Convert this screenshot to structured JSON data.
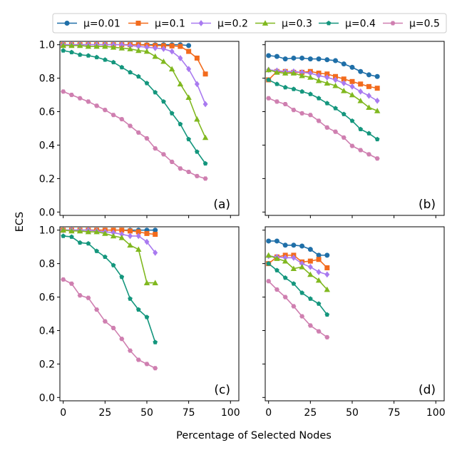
{
  "figure": {
    "ylabel": "ECS",
    "xlabel": "Percentage of Selected Nodes"
  },
  "legend": [
    {
      "name": "μ=0.01",
      "color": "#1f6fa8",
      "marker": "circle"
    },
    {
      "name": "μ=0.1",
      "color": "#f26b1d",
      "marker": "square"
    },
    {
      "name": "μ=0.2",
      "color": "#a97af0",
      "marker": "diamond"
    },
    {
      "name": "μ=0.3",
      "color": "#80b81f",
      "marker": "triangle"
    },
    {
      "name": "μ=0.4",
      "color": "#14967d",
      "marker": "pentagon"
    },
    {
      "name": "μ=0.5",
      "color": "#cf7fb0",
      "marker": "hexagon"
    }
  ],
  "chart_data": [
    {
      "type": "line",
      "panel": "(a)",
      "xlim": [
        -2,
        105
      ],
      "ylim": [
        -0.02,
        1.02
      ],
      "xticks": [
        "0",
        "25",
        "50",
        "75",
        "100"
      ],
      "yticks": [
        "0.0",
        "0.2",
        "0.4",
        "0.6",
        "0.8",
        "1.0"
      ],
      "series": [
        {
          "name": "μ=0.01",
          "x": [
            0,
            5,
            10,
            15,
            20,
            25,
            30,
            35,
            40,
            45,
            50,
            55,
            60,
            65,
            70,
            75
          ],
          "y": [
            1.0,
            1.0,
            1.0,
            1.0,
            1.0,
            1.0,
            1.0,
            1.0,
            1.0,
            1.0,
            1.0,
            1.0,
            1.0,
            1.0,
            1.0,
            0.995
          ]
        },
        {
          "name": "μ=0.1",
          "x": [
            0,
            5,
            10,
            15,
            20,
            25,
            30,
            35,
            40,
            45,
            50,
            55,
            60,
            65,
            70,
            75,
            80,
            85
          ],
          "y": [
            1.0,
            1.0,
            1.0,
            1.0,
            1.0,
            1.0,
            1.0,
            1.0,
            1.0,
            1.0,
            0.997,
            0.995,
            0.994,
            0.993,
            0.99,
            0.96,
            0.92,
            0.825
          ]
        },
        {
          "name": "μ=0.2",
          "x": [
            0,
            5,
            10,
            15,
            20,
            25,
            30,
            35,
            40,
            45,
            50,
            55,
            60,
            65,
            70,
            75,
            80,
            85
          ],
          "y": [
            1.0,
            1.0,
            1.0,
            1.0,
            1.0,
            1.0,
            1.0,
            1.0,
            0.995,
            0.99,
            0.985,
            0.98,
            0.975,
            0.96,
            0.92,
            0.855,
            0.765,
            0.645
          ]
        },
        {
          "name": "μ=0.3",
          "x": [
            0,
            5,
            10,
            15,
            20,
            25,
            30,
            35,
            40,
            45,
            50,
            55,
            60,
            65,
            70,
            75,
            80,
            85
          ],
          "y": [
            0.995,
            0.995,
            0.995,
            0.99,
            0.99,
            0.99,
            0.985,
            0.98,
            0.975,
            0.965,
            0.96,
            0.93,
            0.9,
            0.855,
            0.765,
            0.685,
            0.555,
            0.445
          ]
        },
        {
          "name": "μ=0.4",
          "x": [
            0,
            5,
            10,
            15,
            20,
            25,
            30,
            35,
            40,
            45,
            50,
            55,
            60,
            65,
            70,
            75,
            80,
            85
          ],
          "y": [
            0.965,
            0.955,
            0.94,
            0.935,
            0.925,
            0.91,
            0.895,
            0.865,
            0.835,
            0.81,
            0.77,
            0.715,
            0.66,
            0.59,
            0.525,
            0.435,
            0.36,
            0.29
          ]
        },
        {
          "name": "μ=0.5",
          "x": [
            0,
            5,
            10,
            15,
            20,
            25,
            30,
            35,
            40,
            45,
            50,
            55,
            60,
            65,
            70,
            75,
            80,
            85
          ],
          "y": [
            0.72,
            0.7,
            0.68,
            0.66,
            0.635,
            0.61,
            0.58,
            0.555,
            0.515,
            0.475,
            0.44,
            0.38,
            0.345,
            0.3,
            0.26,
            0.24,
            0.215,
            0.2
          ]
        }
      ]
    },
    {
      "type": "line",
      "panel": "(b)",
      "xlim": [
        -2,
        105
      ],
      "ylim": [
        -0.02,
        1.02
      ],
      "xticks": [
        "0",
        "25",
        "50",
        "75",
        "100"
      ],
      "yticks": [
        "0.0",
        "0.2",
        "0.4",
        "0.6",
        "0.8",
        "1.0"
      ],
      "series": [
        {
          "name": "μ=0.01",
          "x": [
            0,
            5,
            10,
            15,
            20,
            25,
            30,
            35,
            40,
            45,
            50,
            55,
            60,
            65
          ],
          "y": [
            0.935,
            0.93,
            0.915,
            0.92,
            0.92,
            0.915,
            0.915,
            0.91,
            0.905,
            0.885,
            0.865,
            0.84,
            0.82,
            0.81
          ]
        },
        {
          "name": "μ=0.1",
          "x": [
            0,
            5,
            10,
            15,
            20,
            25,
            30,
            35,
            40,
            45,
            50,
            55,
            60,
            65
          ],
          "y": [
            0.79,
            0.84,
            0.84,
            0.835,
            0.835,
            0.84,
            0.83,
            0.825,
            0.81,
            0.795,
            0.78,
            0.765,
            0.75,
            0.74
          ]
        },
        {
          "name": "μ=0.2",
          "x": [
            0,
            5,
            10,
            15,
            20,
            25,
            30,
            35,
            40,
            45,
            50,
            55,
            60,
            65
          ],
          "y": [
            0.85,
            0.845,
            0.84,
            0.84,
            0.835,
            0.83,
            0.815,
            0.805,
            0.79,
            0.77,
            0.75,
            0.72,
            0.695,
            0.665
          ]
        },
        {
          "name": "μ=0.3",
          "x": [
            0,
            5,
            10,
            15,
            20,
            25,
            30,
            35,
            40,
            45,
            50,
            55,
            60,
            65
          ],
          "y": [
            0.85,
            0.835,
            0.83,
            0.83,
            0.815,
            0.805,
            0.785,
            0.77,
            0.755,
            0.725,
            0.7,
            0.665,
            0.625,
            0.605
          ]
        },
        {
          "name": "μ=0.4",
          "x": [
            0,
            5,
            10,
            15,
            20,
            25,
            30,
            35,
            40,
            45,
            50,
            55,
            60,
            65
          ],
          "y": [
            0.79,
            0.765,
            0.745,
            0.735,
            0.72,
            0.705,
            0.68,
            0.65,
            0.62,
            0.585,
            0.545,
            0.495,
            0.47,
            0.435
          ]
        },
        {
          "name": "μ=0.5",
          "x": [
            0,
            5,
            10,
            15,
            20,
            25,
            30,
            35,
            40,
            45,
            50,
            55,
            60,
            65
          ],
          "y": [
            0.68,
            0.66,
            0.645,
            0.61,
            0.59,
            0.58,
            0.545,
            0.505,
            0.48,
            0.445,
            0.395,
            0.37,
            0.345,
            0.32
          ]
        }
      ]
    },
    {
      "type": "line",
      "panel": "(c)",
      "xlim": [
        -2,
        105
      ],
      "ylim": [
        -0.02,
        1.02
      ],
      "xticks": [
        "0",
        "25",
        "50",
        "75",
        "100"
      ],
      "yticks": [
        "0.0",
        "0.2",
        "0.4",
        "0.6",
        "0.8",
        "1.0"
      ],
      "series": [
        {
          "name": "μ=0.01",
          "x": [
            0,
            5,
            10,
            15,
            20,
            25,
            30,
            35,
            40,
            45,
            50,
            55
          ],
          "y": [
            1.0,
            1.0,
            1.0,
            1.0,
            1.0,
            1.0,
            1.0,
            1.0,
            1.0,
            1.0,
            1.0,
            1.0
          ]
        },
        {
          "name": "μ=0.1",
          "x": [
            0,
            5,
            10,
            15,
            20,
            25,
            30,
            35,
            40,
            45,
            50,
            55
          ],
          "y": [
            1.0,
            1.0,
            1.0,
            1.0,
            1.0,
            1.0,
            1.0,
            1.0,
            0.995,
            0.99,
            0.98,
            0.975
          ]
        },
        {
          "name": "μ=0.2",
          "x": [
            0,
            5,
            10,
            15,
            20,
            25,
            30,
            35,
            40,
            45,
            50,
            55
          ],
          "y": [
            1.0,
            1.0,
            1.0,
            1.0,
            0.995,
            0.99,
            0.985,
            0.975,
            0.965,
            0.965,
            0.93,
            0.865
          ]
        },
        {
          "name": "μ=0.3",
          "x": [
            0,
            5,
            10,
            15,
            20,
            25,
            30,
            35,
            40,
            45,
            50,
            55
          ],
          "y": [
            1.0,
            0.995,
            0.995,
            0.99,
            0.99,
            0.98,
            0.965,
            0.955,
            0.91,
            0.885,
            0.685,
            0.685
          ]
        },
        {
          "name": "μ=0.4",
          "x": [
            0,
            5,
            10,
            15,
            20,
            25,
            30,
            35,
            40,
            45,
            50,
            55
          ],
          "y": [
            0.965,
            0.96,
            0.925,
            0.92,
            0.875,
            0.84,
            0.79,
            0.72,
            0.59,
            0.525,
            0.48,
            0.33
          ]
        },
        {
          "name": "μ=0.5",
          "x": [
            0,
            5,
            10,
            15,
            20,
            25,
            30,
            35,
            40,
            45,
            50,
            55
          ],
          "y": [
            0.705,
            0.68,
            0.61,
            0.595,
            0.525,
            0.455,
            0.415,
            0.35,
            0.28,
            0.225,
            0.2,
            0.175
          ]
        }
      ]
    },
    {
      "type": "line",
      "panel": "(d)",
      "xlim": [
        -2,
        105
      ],
      "ylim": [
        -0.02,
        1.02
      ],
      "xticks": [
        "0",
        "25",
        "50",
        "75",
        "100"
      ],
      "yticks": [
        "0.0",
        "0.2",
        "0.4",
        "0.6",
        "0.8",
        "1.0"
      ],
      "series": [
        {
          "name": "μ=0.01",
          "x": [
            0,
            5,
            10,
            15,
            20,
            25,
            30,
            35
          ],
          "y": [
            0.935,
            0.935,
            0.91,
            0.91,
            0.905,
            0.885,
            0.85,
            0.85
          ]
        },
        {
          "name": "μ=0.1",
          "x": [
            0,
            5,
            10,
            15,
            20,
            25,
            30,
            35
          ],
          "y": [
            0.8,
            0.84,
            0.85,
            0.85,
            0.81,
            0.815,
            0.825,
            0.775
          ]
        },
        {
          "name": "μ=0.2",
          "x": [
            0,
            5,
            10,
            15,
            20,
            25,
            30,
            35
          ],
          "y": [
            0.845,
            0.84,
            0.835,
            0.835,
            0.8,
            0.78,
            0.75,
            0.735
          ]
        },
        {
          "name": "μ=0.3",
          "x": [
            0,
            5,
            10,
            15,
            20,
            25,
            30,
            35
          ],
          "y": [
            0.85,
            0.83,
            0.815,
            0.77,
            0.78,
            0.735,
            0.7,
            0.645
          ]
        },
        {
          "name": "μ=0.4",
          "x": [
            0,
            5,
            10,
            15,
            20,
            25,
            30,
            35
          ],
          "y": [
            0.8,
            0.76,
            0.715,
            0.68,
            0.625,
            0.59,
            0.56,
            0.495
          ]
        },
        {
          "name": "μ=0.5",
          "x": [
            0,
            5,
            10,
            15,
            20,
            25,
            30,
            35
          ],
          "y": [
            0.695,
            0.645,
            0.6,
            0.545,
            0.485,
            0.43,
            0.395,
            0.36
          ]
        }
      ]
    }
  ]
}
